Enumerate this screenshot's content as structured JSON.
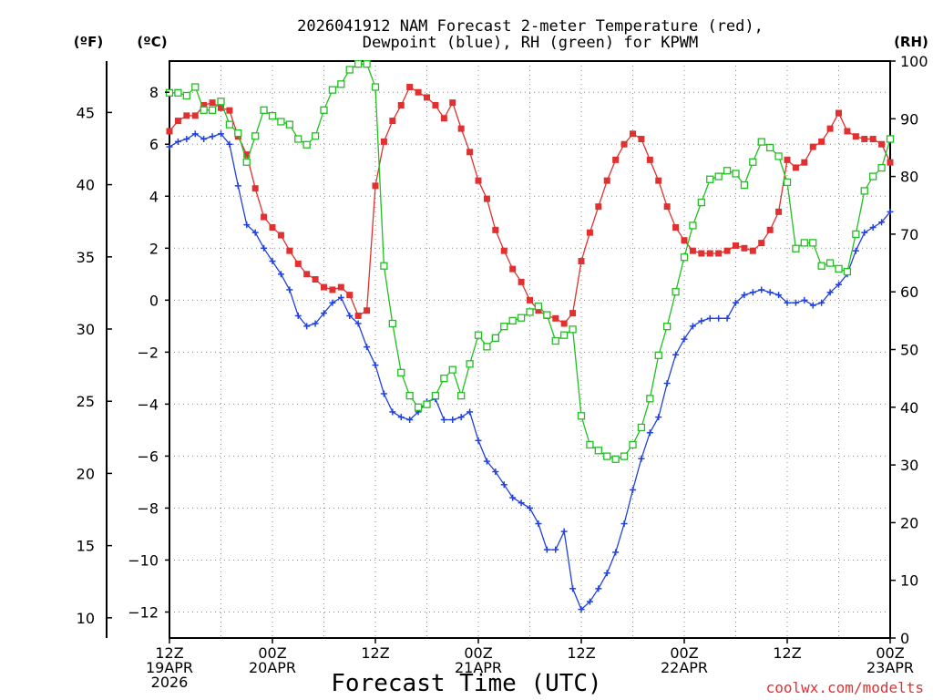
{
  "chart_data": {
    "type": "line",
    "title_line1": "2026041912 NAM Forecast 2-meter Temperature (red),",
    "title_line2": "Dewpoint (blue), RH (green) for KPWM",
    "units": {
      "fahrenheit": "(ºF)",
      "celsius": "(ºC)",
      "rh": "(RH)"
    },
    "xlabel": "Forecast Time (UTC)",
    "credit": "coolwx.com/modelts",
    "x_hours_range": [
      0,
      84
    ],
    "c_axis_range": [
      -13,
      9.2
    ],
    "rh_axis_range": [
      0,
      100
    ],
    "x_ticks": [
      {
        "hour": 0,
        "line1": "12Z",
        "line2": "19APR",
        "line3": "2026"
      },
      {
        "hour": 12,
        "line1": "00Z",
        "line2": "20APR",
        "line3": ""
      },
      {
        "hour": 24,
        "line1": "12Z",
        "line2": "",
        "line3": ""
      },
      {
        "hour": 36,
        "line1": "00Z",
        "line2": "21APR",
        "line3": ""
      },
      {
        "hour": 48,
        "line1": "12Z",
        "line2": "",
        "line3": ""
      },
      {
        "hour": 60,
        "line1": "00Z",
        "line2": "22APR",
        "line3": ""
      },
      {
        "hour": 72,
        "line1": "12Z",
        "line2": "",
        "line3": ""
      },
      {
        "hour": 84,
        "line1": "00Z",
        "line2": "23APR",
        "line3": ""
      }
    ],
    "c_ticks": [
      "8",
      "6",
      "4",
      "2",
      "0",
      "−2",
      "−4",
      "−6",
      "−8",
      "−10",
      "−12"
    ],
    "c_tick_values": [
      8,
      6,
      4,
      2,
      0,
      -2,
      -4,
      -6,
      -8,
      -10,
      -12
    ],
    "f_ticks": [
      "45",
      "40",
      "35",
      "30",
      "25",
      "20",
      "15",
      "10"
    ],
    "f_tick_values": [
      45,
      40,
      35,
      30,
      25,
      20,
      15,
      10
    ],
    "rh_ticks": [
      "100",
      "90",
      "80",
      "70",
      "60",
      "50",
      "40",
      "30",
      "20",
      "10",
      "0"
    ],
    "rh_tick_values": [
      100,
      90,
      80,
      70,
      60,
      50,
      40,
      30,
      20,
      10,
      0
    ],
    "series": [
      {
        "name": "Temperature (°C)",
        "axis": "c",
        "color": "#e03030",
        "marker": "filled-square",
        "hours": [
          0,
          1,
          2,
          3,
          4,
          5,
          6,
          7,
          8,
          9,
          10,
          11,
          12,
          13,
          14,
          15,
          16,
          17,
          18,
          19,
          20,
          21,
          22,
          23,
          24,
          25,
          26,
          27,
          28,
          29,
          30,
          31,
          32,
          33,
          34,
          35,
          36,
          37,
          38,
          39,
          40,
          41,
          42,
          43,
          44,
          45,
          46,
          47,
          48,
          49,
          50,
          51,
          52,
          53,
          54,
          55,
          56,
          57,
          58,
          59,
          60,
          61,
          62,
          63,
          64,
          65,
          66,
          67,
          68,
          69,
          70,
          71,
          72,
          73,
          74,
          75,
          76,
          77,
          78,
          79,
          80,
          81,
          82,
          83,
          84
        ],
        "values": [
          6.5,
          6.9,
          7.1,
          7.1,
          7.5,
          7.6,
          7.4,
          7.3,
          6.3,
          5.6,
          4.3,
          3.2,
          2.8,
          2.5,
          1.9,
          1.4,
          1.0,
          0.8,
          0.5,
          0.4,
          0.5,
          0.2,
          -0.6,
          -0.4,
          4.4,
          6.1,
          6.9,
          7.5,
          8.2,
          8.0,
          7.8,
          7.5,
          7.0,
          7.6,
          6.6,
          5.7,
          4.6,
          3.9,
          2.7,
          1.9,
          1.2,
          0.7,
          0.0,
          -0.4,
          -0.6,
          -0.7,
          -0.9,
          -0.5,
          1.5,
          2.6,
          3.6,
          4.6,
          5.4,
          6.0,
          6.4,
          6.2,
          5.4,
          4.6,
          3.6,
          2.8,
          2.3,
          1.9,
          1.8,
          1.8,
          1.8,
          1.9,
          2.1,
          2.0,
          1.9,
          2.2,
          2.7,
          3.4,
          5.4,
          5.1,
          5.3,
          5.9,
          6.1,
          6.6,
          7.2,
          6.5,
          6.3,
          6.2,
          6.2,
          6.0,
          5.3
        ]
      },
      {
        "name": "Dewpoint (°C)",
        "axis": "c",
        "color": "#2040e0",
        "marker": "plus",
        "hours": [
          0,
          1,
          2,
          3,
          4,
          5,
          6,
          7,
          8,
          9,
          10,
          11,
          12,
          13,
          14,
          15,
          16,
          17,
          18,
          19,
          20,
          21,
          22,
          23,
          24,
          25,
          26,
          27,
          28,
          29,
          30,
          31,
          32,
          33,
          34,
          35,
          36,
          37,
          38,
          39,
          40,
          41,
          42,
          43,
          44,
          45,
          46,
          47,
          48,
          49,
          50,
          51,
          52,
          53,
          54,
          55,
          56,
          57,
          58,
          59,
          60,
          61,
          62,
          63,
          64,
          65,
          66,
          67,
          68,
          69,
          70,
          71,
          72,
          73,
          74,
          75,
          76,
          77,
          78,
          79,
          80,
          81,
          82,
          83,
          84
        ],
        "values": [
          5.9,
          6.1,
          6.2,
          6.4,
          6.2,
          6.3,
          6.4,
          6.0,
          4.4,
          2.9,
          2.6,
          2.0,
          1.5,
          1.0,
          0.4,
          -0.6,
          -1.0,
          -0.9,
          -0.5,
          -0.1,
          0.1,
          -0.6,
          -0.9,
          -1.8,
          -2.5,
          -3.6,
          -4.3,
          -4.5,
          -4.6,
          -4.3,
          -3.9,
          -3.8,
          -4.6,
          -4.6,
          -4.5,
          -4.3,
          -5.4,
          -6.2,
          -6.6,
          -7.1,
          -7.6,
          -7.8,
          -8.0,
          -8.6,
          -9.6,
          -9.6,
          -8.9,
          -11.1,
          -11.9,
          -11.6,
          -11.1,
          -10.5,
          -9.7,
          -8.6,
          -7.3,
          -6.1,
          -5.1,
          -4.5,
          -3.2,
          -2.1,
          -1.5,
          -1.0,
          -0.8,
          -0.7,
          -0.7,
          -0.7,
          -0.1,
          0.2,
          0.3,
          0.4,
          0.3,
          0.2,
          -0.1,
          -0.1,
          0.0,
          -0.2,
          -0.1,
          0.3,
          0.6,
          1.0,
          1.9,
          2.6,
          2.8,
          3.0,
          3.4
        ]
      },
      {
        "name": "RH (%)",
        "axis": "rh",
        "color": "#20c020",
        "marker": "open-square",
        "hours": [
          0,
          1,
          2,
          3,
          4,
          5,
          6,
          7,
          8,
          9,
          10,
          11,
          12,
          13,
          14,
          15,
          16,
          17,
          18,
          19,
          20,
          21,
          22,
          23,
          24,
          25,
          26,
          27,
          28,
          29,
          30,
          31,
          32,
          33,
          34,
          35,
          36,
          37,
          38,
          39,
          40,
          41,
          42,
          43,
          44,
          45,
          46,
          47,
          48,
          49,
          50,
          51,
          52,
          53,
          54,
          55,
          56,
          57,
          58,
          59,
          60,
          61,
          62,
          63,
          64,
          65,
          66,
          67,
          68,
          69,
          70,
          71,
          72,
          73,
          74,
          75,
          76,
          77,
          78,
          79,
          80,
          81,
          82,
          83,
          84
        ],
        "values": [
          94.5,
          94.5,
          94,
          95.5,
          91.5,
          91.5,
          93,
          89,
          87.5,
          82.5,
          87,
          91.5,
          90.5,
          89.5,
          89,
          86.5,
          85.5,
          87,
          91.5,
          95,
          96,
          98.5,
          99.5,
          99.5,
          95.5,
          64.5,
          54.5,
          46,
          42,
          40,
          40.5,
          42,
          45,
          46.5,
          42,
          47.5,
          52.5,
          50.5,
          52,
          54,
          55,
          55.5,
          56.5,
          57.5,
          56,
          51.5,
          52.5,
          53.5,
          38.5,
          33.5,
          32.5,
          31.5,
          31,
          31.5,
          33.5,
          36.5,
          41.5,
          49,
          54,
          60,
          66,
          71.5,
          75.5,
          79.5,
          80,
          81,
          80.5,
          78.5,
          82.5,
          86,
          85,
          83.5,
          79,
          67.5,
          68.5,
          68.5,
          64.5,
          65,
          64,
          63.5,
          70,
          77.5,
          80,
          81.5,
          86.5
        ]
      }
    ]
  }
}
